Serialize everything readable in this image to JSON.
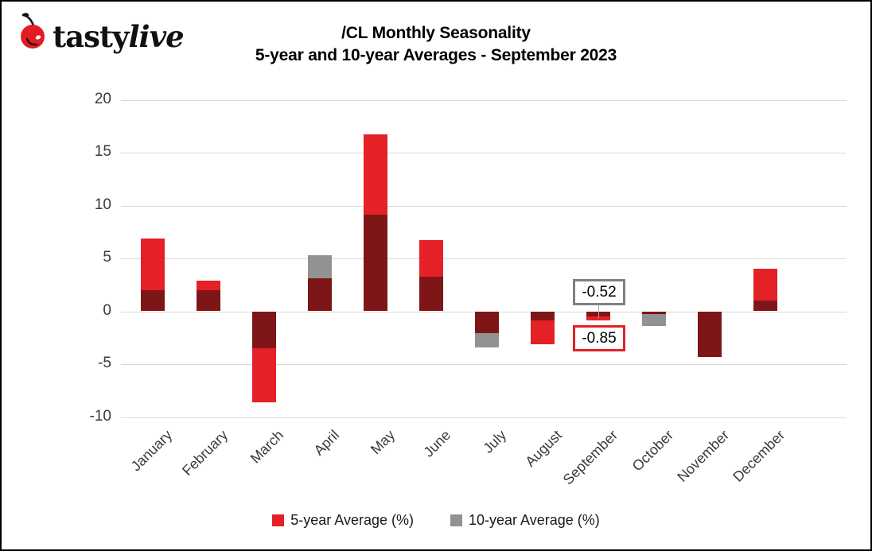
{
  "logo": {
    "brand_first": "tasty",
    "brand_second": "live",
    "cherry_color": "#e31b23"
  },
  "title": {
    "line1": "/CL Monthly Seasonality",
    "line2": "5-year and 10-year Averages - September 2023"
  },
  "chart_data": {
    "type": "bar",
    "categories": [
      "January",
      "February",
      "March",
      "April",
      "May",
      "June",
      "July",
      "August",
      "September",
      "October",
      "November",
      "December"
    ],
    "series": [
      {
        "name": "5-year Average (%)",
        "color": "#e32127",
        "values": [
          6.9,
          2.9,
          -8.6,
          3.1,
          16.7,
          6.7,
          -2.1,
          -3.1,
          -0.85,
          -0.3,
          -4.3,
          4.0
        ]
      },
      {
        "name": "10-year Average (%)",
        "color": "#919291",
        "values": [
          2.0,
          2.0,
          -3.5,
          5.3,
          9.1,
          3.3,
          -3.4,
          -0.9,
          -0.52,
          -1.4,
          -4.3,
          1.0
        ]
      }
    ],
    "overlap_color": "#7e1618",
    "bar_style": "overlaid",
    "yticks": [
      20,
      15,
      10,
      5,
      0,
      -5,
      -10
    ],
    "ylim": [
      -10,
      20
    ],
    "grid": "horizontal",
    "gridline_color": "#d9d9d9",
    "legend_position": "bottom",
    "annotations": [
      {
        "text": "-0.52",
        "month": "September",
        "series": "10-year Average (%)",
        "box_border_color": "#808080"
      },
      {
        "text": "-0.85",
        "month": "September",
        "series": "5-year Average (%)",
        "box_border_color": "#e32127"
      }
    ]
  }
}
